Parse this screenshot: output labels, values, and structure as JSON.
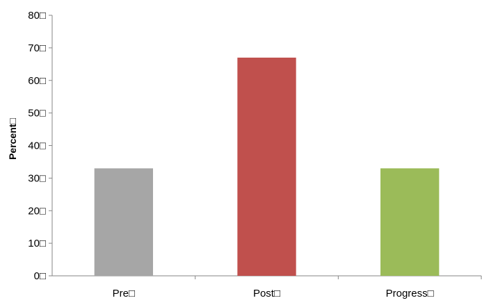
{
  "chart_data": {
    "type": "bar",
    "title": "",
    "xlabel": "",
    "ylabel": "Percent□",
    "categories": [
      "Pre□",
      "Post□",
      "Progress□"
    ],
    "values": [
      33,
      67,
      33
    ],
    "bar_colors": [
      "#a6a6a6",
      "#c0504d",
      "#9bbb59"
    ],
    "ylim": [
      0,
      80
    ],
    "y_ticks": [
      0,
      10,
      20,
      30,
      40,
      50,
      60,
      70,
      80
    ],
    "y_tick_labels": [
      "0□",
      "10□",
      "20□",
      "30□",
      "40□",
      "50□",
      "60□",
      "70□",
      "80□"
    ],
    "grid": false,
    "legend": "none",
    "axis_color": "#868686"
  }
}
